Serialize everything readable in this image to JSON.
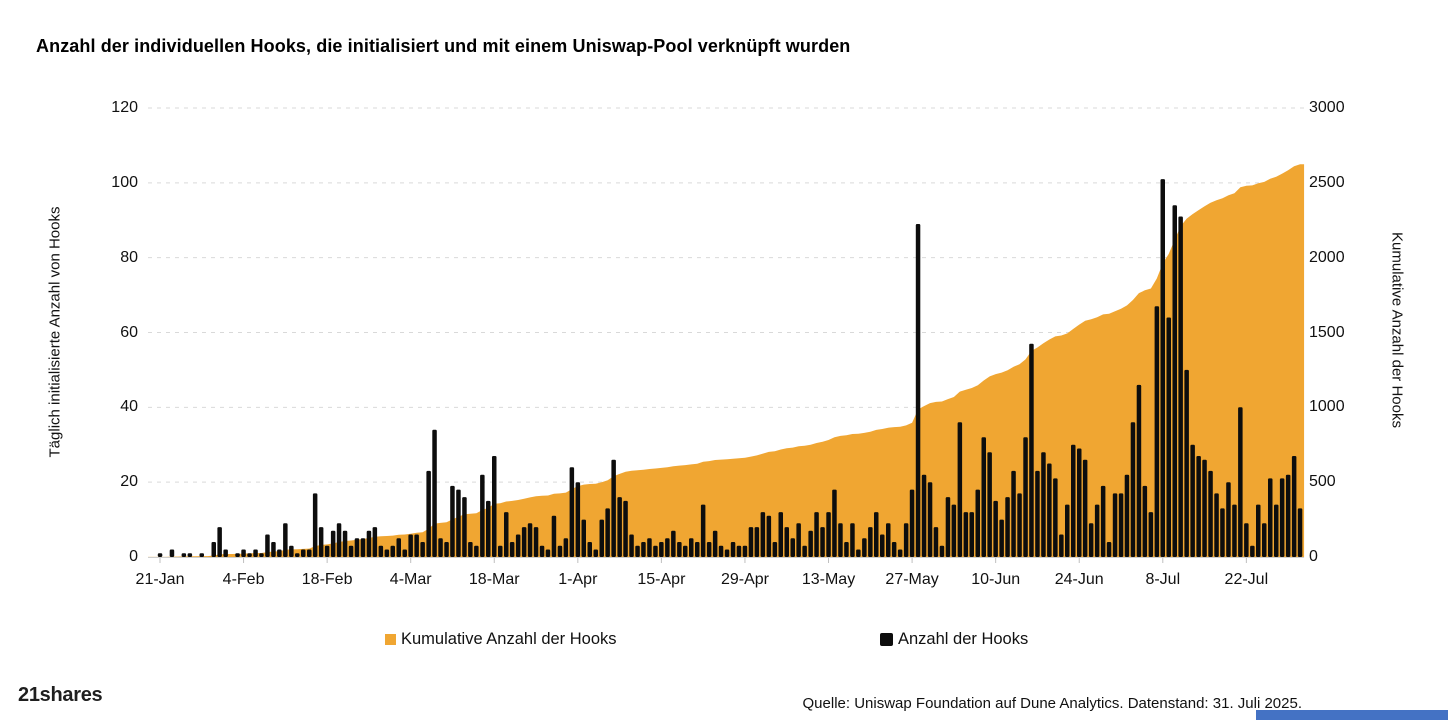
{
  "title": "Anzahl der individuellen Hooks, die initialisiert und mit einem Uniswap-Pool verknüpft wurden",
  "chart_data": {
    "type": "bar",
    "combo": "daily bars on left axis + cumulative area on right axis",
    "x_tick_labels": [
      "21-Jan",
      "4-Feb",
      "18-Feb",
      "4-Mar",
      "18-Mar",
      "1-Apr",
      "15-Apr",
      "29-Apr",
      "13-May",
      "27-May",
      "10-Jun",
      "24-Jun",
      "8-Jul",
      "22-Jul"
    ],
    "x_tick_day_indices": [
      0,
      14,
      28,
      42,
      56,
      70,
      84,
      98,
      112,
      126,
      140,
      154,
      168,
      182
    ],
    "left_axis": {
      "label": "Täglich initialisierte Anzahl von Hooks",
      "min": 0,
      "max": 120,
      "ticks": [
        0,
        20,
        40,
        60,
        80,
        100,
        120
      ]
    },
    "right_axis": {
      "label": "Kumulative Anzahl der Hooks",
      "min": 0,
      "max": 3000,
      "ticks": [
        0,
        500,
        1000,
        1500,
        2000,
        2500,
        3000
      ]
    },
    "grid": "horizontal dashed",
    "legend_position": "bottom",
    "series": [
      {
        "name": "Kumulative Anzahl der Hooks",
        "type": "area",
        "axis": "right",
        "color": "#F0A632",
        "derived": "cumulative_sum_of_daily_series",
        "end_value_approx": 2620
      },
      {
        "name": "Anzahl der Hooks",
        "type": "bar",
        "axis": "left",
        "color": "#0D0D0D",
        "start_date": "21-Jan",
        "values": [
          1,
          0,
          2,
          0,
          1,
          1,
          0,
          1,
          0,
          4,
          8,
          2,
          0,
          1,
          2,
          1,
          2,
          1,
          6,
          4,
          2,
          9,
          3,
          1,
          2,
          2,
          17,
          8,
          3,
          7,
          9,
          7,
          3,
          5,
          5,
          7,
          8,
          3,
          2,
          3,
          5,
          2,
          6,
          6,
          4,
          23,
          34,
          5,
          4,
          19,
          18,
          16,
          4,
          3,
          22,
          15,
          27,
          3,
          12,
          4,
          6,
          8,
          9,
          8,
          3,
          2,
          11,
          3,
          5,
          24,
          20,
          10,
          4,
          2,
          10,
          13,
          26,
          16,
          15,
          6,
          3,
          4,
          5,
          3,
          4,
          5,
          7,
          4,
          3,
          5,
          4,
          14,
          4,
          7,
          3,
          2,
          4,
          3,
          3,
          8,
          8,
          12,
          11,
          4,
          12,
          8,
          5,
          9,
          3,
          7,
          12,
          8,
          12,
          18,
          9,
          4,
          9,
          2,
          5,
          8,
          12,
          6,
          9,
          4,
          2,
          9,
          18,
          89,
          22,
          20,
          8,
          3,
          16,
          14,
          36,
          12,
          12,
          18,
          32,
          28,
          15,
          10,
          16,
          23,
          17,
          32,
          57,
          23,
          28,
          25,
          21,
          6,
          14,
          30,
          29,
          26,
          9,
          14,
          19,
          4,
          17,
          17,
          22,
          36,
          46,
          19,
          12,
          67,
          101,
          64,
          94,
          91,
          50,
          30,
          27,
          26,
          23,
          17,
          13,
          20,
          14,
          40,
          9,
          3,
          14,
          9,
          21,
          14,
          21,
          22,
          27,
          13
        ]
      }
    ],
    "legend": [
      {
        "label": "Kumulative Anzahl der Hooks",
        "color": "#F0A632"
      },
      {
        "label": "Anzahl der Hooks",
        "color": "#0D0D0D"
      }
    ],
    "peak_daily_value": 101,
    "gridline_color": "#D9D9D9"
  },
  "footer": {
    "brand": "21shares",
    "source": "Quelle: Uniswap Foundation auf Dune Analytics. Datenstand: 31. Juli 2025."
  },
  "decoration": {
    "bottom_bar_color": "#4472C4"
  }
}
